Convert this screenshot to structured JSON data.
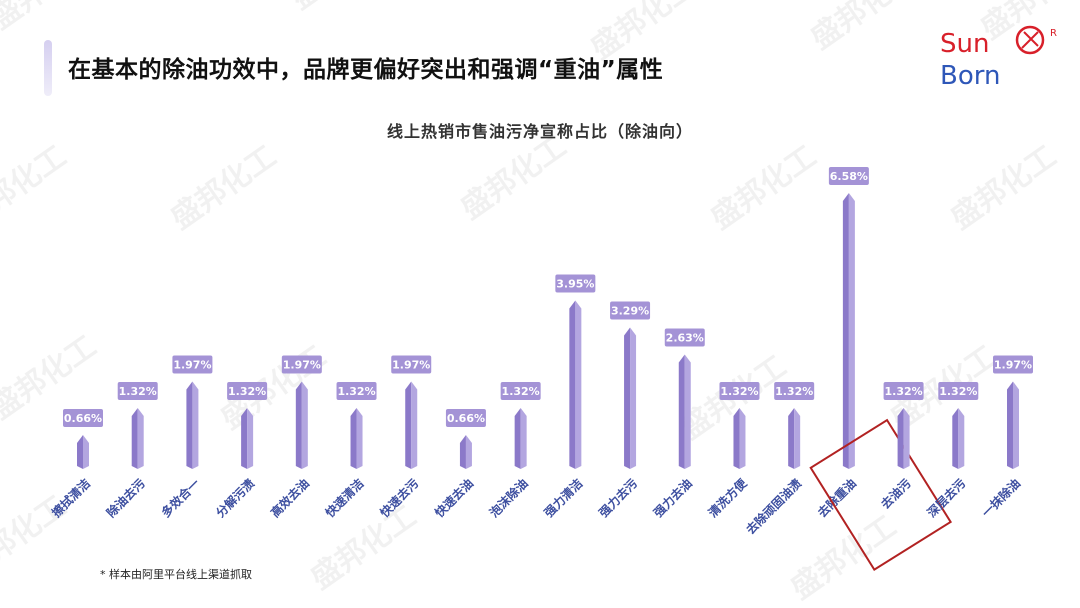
{
  "header": {
    "title": "在基本的除油功效中，品牌更偏好突出和强调“重油”属性"
  },
  "logo": {
    "line1": "Sun",
    "line2": "Born",
    "registered": "R"
  },
  "watermark_text": "盛邦化工",
  "footnote": "* 样本由阿里平台线上渠道抓取",
  "colors": {
    "bar_front": "#8b79c9",
    "bar_side": "#b3a6e0",
    "label_bg": "#a493d6",
    "category_text": "#3d4fa0",
    "highlight_box": "#b22222",
    "logo_red": "#d8202a",
    "logo_blue": "#2e57b8"
  },
  "chart_data": {
    "type": "bar",
    "title": "线上热销市售油污净宣称占比（除油向）",
    "categories": [
      "擦拭清洁",
      "除油去污",
      "多效合一",
      "分解污渍",
      "高效去油",
      "快速清洁",
      "快速去污",
      "快速去油",
      "泡沫除油",
      "强力清洁",
      "强力去污",
      "强力去油",
      "清洗方便",
      "去除顽固油渍",
      "去除重油",
      "去油污",
      "深层去污",
      "一抹除油"
    ],
    "values": [
      0.66,
      1.32,
      1.97,
      1.32,
      1.97,
      1.32,
      1.97,
      0.66,
      1.32,
      3.95,
      3.29,
      2.63,
      1.32,
      1.32,
      6.58,
      1.32,
      1.32,
      1.97
    ],
    "value_labels": [
      "0.66%",
      "1.32%",
      "1.97%",
      "1.32%",
      "1.97%",
      "1.32%",
      "1.97%",
      "0.66%",
      "1.32%",
      "3.95%",
      "3.29%",
      "2.63%",
      "1.32%",
      "1.32%",
      "6.58%",
      "1.32%",
      "1.32%",
      "1.97%"
    ],
    "unit": "%",
    "ylim": [
      0,
      7
    ],
    "grid": false,
    "legend": "none",
    "highlighted_category": "去除重油"
  }
}
